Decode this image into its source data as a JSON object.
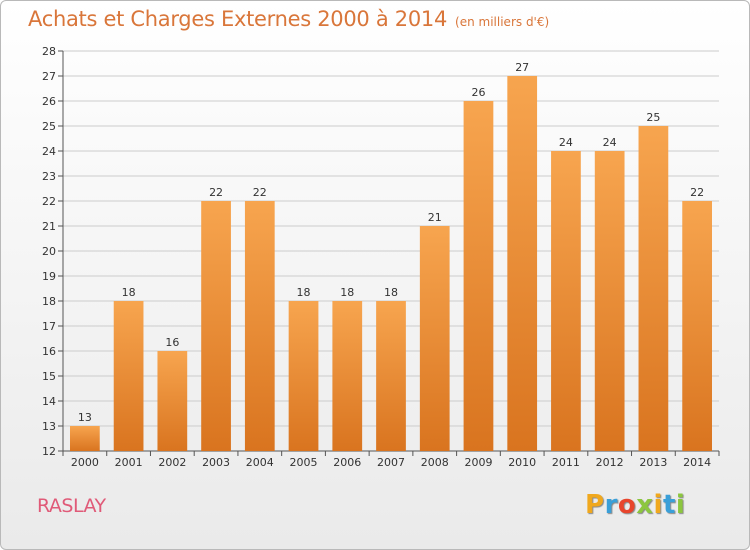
{
  "header": {
    "title": "Achats et Charges Externes 2000 à 2014",
    "unit": "(en milliers d'€)"
  },
  "footer": {
    "commune": "RASLAY",
    "logo_letters": [
      "P",
      "r",
      "o",
      "x",
      "i",
      "t",
      "i"
    ],
    "logo_colors": [
      "#f0a81e",
      "#3a9fd8",
      "#e8452c",
      "#8cc63f",
      "#f0a81e",
      "#3a9fd8",
      "#8cc63f"
    ]
  },
  "colors": {
    "bar_top": "#f7a54f",
    "bar_bottom": "#d9741f",
    "grid": "#cccccc",
    "title": "#d9763a"
  },
  "chart_data": {
    "type": "bar",
    "title": "Achats et Charges Externes 2000 à 2014",
    "subtitle": "(en milliers d'€)",
    "categories": [
      "2000",
      "2001",
      "2002",
      "2003",
      "2004",
      "2005",
      "2006",
      "2007",
      "2008",
      "2009",
      "2010",
      "2011",
      "2012",
      "2013",
      "2014"
    ],
    "values": [
      13,
      18,
      16,
      22,
      22,
      18,
      18,
      18,
      21,
      26,
      27,
      24,
      24,
      25,
      22
    ],
    "ylim": [
      12,
      28
    ],
    "yticks": [
      12,
      13,
      14,
      15,
      16,
      17,
      18,
      19,
      20,
      21,
      22,
      23,
      24,
      25,
      26,
      27,
      28
    ],
    "grid": true,
    "legend": "none"
  }
}
